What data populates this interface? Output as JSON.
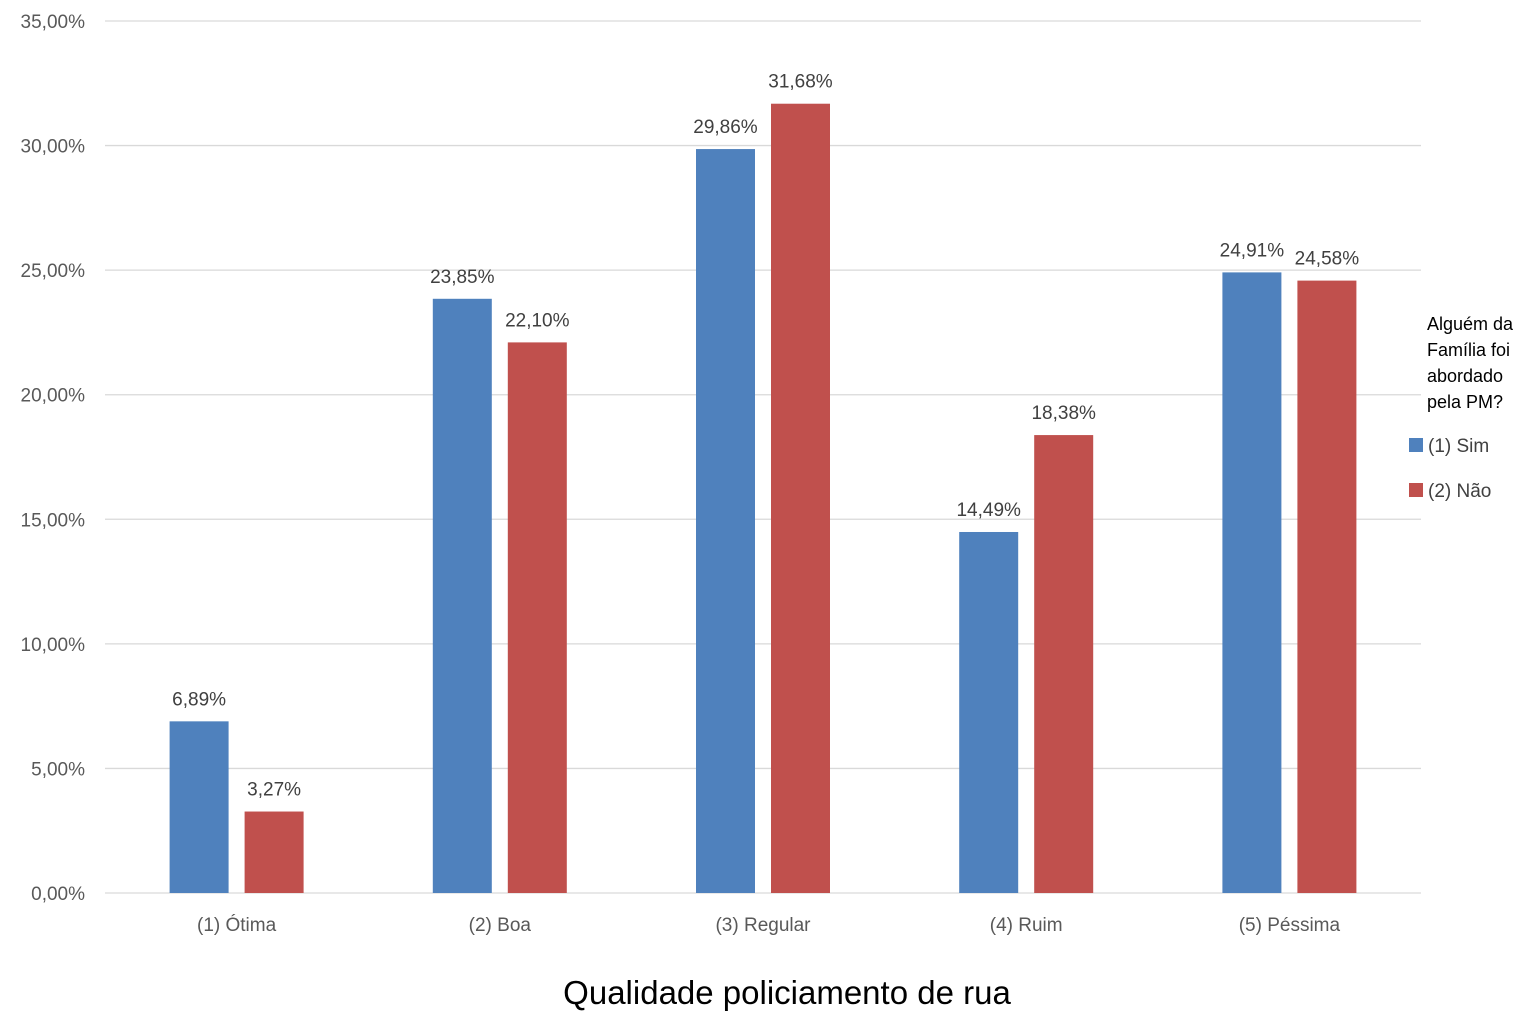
{
  "chart_data": {
    "type": "bar",
    "title": "",
    "xlabel": "Qualidade policiamento de rua",
    "ylabel": "",
    "ylim": [
      0,
      35
    ],
    "yticks": [
      "0,00%",
      "5,00%",
      "10,00%",
      "15,00%",
      "20,00%",
      "25,00%",
      "30,00%",
      "35,00%"
    ],
    "grid": true,
    "legend_position": "right",
    "legend_title": [
      "Alguém da",
      "Família foi",
      "abordado",
      "pela PM?"
    ],
    "categories": [
      "(1) Ótima",
      "(2) Boa",
      "(3) Regular",
      "(4) Ruim",
      "(5) Péssima"
    ],
    "series": [
      {
        "name": "(1) Sim",
        "color": "#4f81bd",
        "values": [
          6.89,
          23.85,
          29.86,
          14.49,
          24.91
        ],
        "labels": [
          "6,89%",
          "23,85%",
          "29,86%",
          "14,49%",
          "24,91%"
        ]
      },
      {
        "name": "(2) Não",
        "color": "#c0504d",
        "values": [
          3.27,
          22.1,
          31.68,
          18.38,
          24.58
        ],
        "labels": [
          "3,27%",
          "22,10%",
          "31,68%",
          "18,38%",
          "24,58%"
        ]
      }
    ]
  }
}
